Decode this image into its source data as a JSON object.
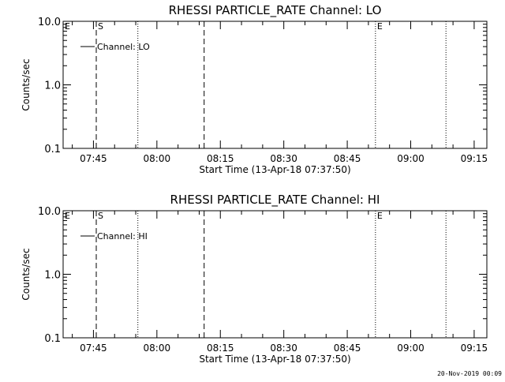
{
  "chart_data": [
    {
      "type": "line",
      "title": "RHESSI PARTICLE_RATE Channel: LO",
      "xlabel": "Start Time (13-Apr-18 07:37:50)",
      "ylabel": "Counts/sec",
      "y_scale": "log",
      "ylim": [
        0.1,
        10.0
      ],
      "y_ticks": [
        "0.1",
        "1.0",
        "10.0"
      ],
      "xlim": [
        "07:37:50",
        "09:18:00"
      ],
      "x_ticks": [
        "07:45",
        "08:00",
        "08:15",
        "08:30",
        "08:45",
        "09:00",
        "09:15"
      ],
      "grid": false,
      "legend_placement": "top-left",
      "series": [
        {
          "name": "Channel: LO",
          "x": [],
          "values": []
        }
      ],
      "event_lines": [
        {
          "time": "07:37:50",
          "style": "dotted",
          "label": "E"
        },
        {
          "time": "07:45:40",
          "style": "dashed",
          "label": "S"
        },
        {
          "time": "07:55:30",
          "style": "dotted",
          "label": ""
        },
        {
          "time": "08:11:10",
          "style": "dashed",
          "label": ""
        },
        {
          "time": "08:51:40",
          "style": "dotted",
          "label": "E"
        },
        {
          "time": "09:08:20",
          "style": "dotted",
          "label": ""
        }
      ]
    },
    {
      "type": "line",
      "title": "RHESSI PARTICLE_RATE Channel: HI",
      "xlabel": "Start Time (13-Apr-18 07:37:50)",
      "ylabel": "Counts/sec",
      "y_scale": "log",
      "ylim": [
        0.1,
        10.0
      ],
      "y_ticks": [
        "0.1",
        "1.0",
        "10.0"
      ],
      "xlim": [
        "07:37:50",
        "09:18:00"
      ],
      "x_ticks": [
        "07:45",
        "08:00",
        "08:15",
        "08:30",
        "08:45",
        "09:00",
        "09:15"
      ],
      "grid": false,
      "legend_placement": "top-left",
      "series": [
        {
          "name": "Channel: HI",
          "x": [],
          "values": []
        }
      ],
      "event_lines": [
        {
          "time": "07:37:50",
          "style": "dotted",
          "label": "E"
        },
        {
          "time": "07:45:40",
          "style": "dashed",
          "label": "S"
        },
        {
          "time": "07:55:30",
          "style": "dotted",
          "label": ""
        },
        {
          "time": "08:11:10",
          "style": "dashed",
          "label": ""
        },
        {
          "time": "08:51:40",
          "style": "dotted",
          "label": "E"
        },
        {
          "time": "09:08:20",
          "style": "dotted",
          "label": ""
        }
      ]
    }
  ],
  "footer": {
    "date_stamp": "20-Nov-2019 00:09"
  },
  "colors": {
    "background": "#ffffff",
    "foreground": "#000000"
  }
}
